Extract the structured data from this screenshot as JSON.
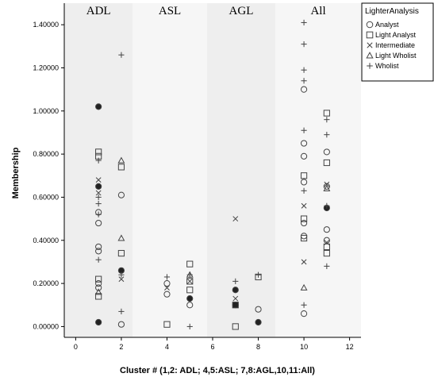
{
  "chart_data": {
    "type": "scatter",
    "title": "",
    "xlabel": "Cluster # (1,2: ADL; 4,5:ASL; 7,8:AGL,10,11:All)",
    "ylabel": "Membership",
    "xlim": [
      -0.5,
      12.5
    ],
    "ylim": [
      -0.05,
      1.5
    ],
    "x_ticks": [
      "0",
      "2",
      "4",
      "6",
      "8",
      "10",
      "12"
    ],
    "x_tick_values": [
      0,
      2,
      4,
      6,
      8,
      10,
      12
    ],
    "y_ticks": [
      "0.00000",
      "0.20000",
      "0.40000",
      "0.60000",
      "0.80000",
      "1.00000",
      "1.20000",
      "1.40000"
    ],
    "y_tick_values": [
      0,
      0.2,
      0.4,
      0.6,
      0.8,
      1.0,
      1.2,
      1.4
    ],
    "grid": false,
    "panels": [
      {
        "label": "ADL",
        "x_range": [
          -0.5,
          2.5
        ],
        "color": "#eeeeee"
      },
      {
        "label": "ASL",
        "x_range": [
          2.5,
          5.75
        ],
        "color": "#f6f6f6"
      },
      {
        "label": "AGL",
        "x_range": [
          5.75,
          8.75
        ],
        "color": "#eeeeee"
      },
      {
        "label": "All",
        "x_range": [
          8.75,
          12.5
        ],
        "color": "#f6f6f6"
      }
    ],
    "legend": {
      "title": "LighterAnalysis",
      "position": "top-right",
      "entries": [
        {
          "name": "Analyst",
          "marker": "circle"
        },
        {
          "name": "Light Analyst",
          "marker": "square"
        },
        {
          "name": "Intermediate",
          "marker": "x"
        },
        {
          "name": "Light Wholist",
          "marker": "triangle"
        },
        {
          "name": "Wholist",
          "marker": "plus"
        }
      ]
    },
    "series": [
      {
        "name": "Analyst",
        "marker": "circle",
        "points": [
          [
            1,
            1.02
          ],
          [
            1,
            0.65
          ],
          [
            1,
            0.53
          ],
          [
            1,
            0.48
          ],
          [
            1,
            0.37
          ],
          [
            1,
            0.35
          ],
          [
            1,
            0.2
          ],
          [
            1,
            0.18
          ],
          [
            1,
            0.02
          ],
          [
            2,
            0.61
          ],
          [
            2,
            0.26
          ],
          [
            2,
            0.01
          ],
          [
            4,
            0.2
          ],
          [
            4,
            0.15
          ],
          [
            5,
            0.13
          ],
          [
            5,
            0.1
          ],
          [
            7,
            0.17
          ],
          [
            7,
            0.1
          ],
          [
            8,
            0.08
          ],
          [
            8,
            0.02
          ],
          [
            10,
            1.1
          ],
          [
            10,
            0.85
          ],
          [
            10,
            0.79
          ],
          [
            10,
            0.67
          ],
          [
            10,
            0.48
          ],
          [
            10,
            0.42
          ],
          [
            10,
            0.06
          ],
          [
            11,
            0.81
          ],
          [
            11,
            0.65
          ],
          [
            11,
            0.55
          ],
          [
            11,
            0.45
          ],
          [
            11,
            0.4
          ]
        ]
      },
      {
        "name": "Light Analyst",
        "marker": "square",
        "points": [
          [
            1,
            0.81
          ],
          [
            1,
            0.79
          ],
          [
            1,
            0.22
          ],
          [
            1,
            0.14
          ],
          [
            2,
            0.74
          ],
          [
            2,
            0.34
          ],
          [
            4,
            0.01
          ],
          [
            5,
            0.29
          ],
          [
            5,
            0.21
          ],
          [
            5,
            0.17
          ],
          [
            7,
            0.0
          ],
          [
            7,
            0.1
          ],
          [
            8,
            0.23
          ],
          [
            10,
            0.7
          ],
          [
            10,
            0.5
          ],
          [
            10,
            0.41
          ],
          [
            11,
            0.99
          ],
          [
            11,
            0.76
          ],
          [
            11,
            0.37
          ],
          [
            11,
            0.34
          ]
        ]
      },
      {
        "name": "Intermediate",
        "marker": "x",
        "points": [
          [
            1,
            0.68
          ],
          [
            1,
            0.62
          ],
          [
            2,
            0.22
          ],
          [
            4,
            0.18
          ],
          [
            5,
            0.21
          ],
          [
            7,
            0.5
          ],
          [
            7,
            0.13
          ],
          [
            10,
            0.56
          ],
          [
            10,
            0.3
          ],
          [
            11,
            0.66
          ],
          [
            11,
            0.39
          ]
        ]
      },
      {
        "name": "Light Wholist",
        "marker": "triangle",
        "points": [
          [
            1,
            0.16
          ],
          [
            2,
            0.77
          ],
          [
            2,
            0.41
          ],
          [
            5,
            0.24
          ],
          [
            10,
            0.18
          ],
          [
            11,
            0.64
          ]
        ]
      },
      {
        "name": "Wholist",
        "marker": "plus",
        "points": [
          [
            1,
            0.77
          ],
          [
            1,
            0.6
          ],
          [
            1,
            0.57
          ],
          [
            1,
            0.52
          ],
          [
            1,
            0.31
          ],
          [
            2,
            1.26
          ],
          [
            2,
            0.24
          ],
          [
            2,
            0.07
          ],
          [
            4,
            0.23
          ],
          [
            5,
            0.24
          ],
          [
            5,
            0.0
          ],
          [
            7,
            0.21
          ],
          [
            8,
            0.24
          ],
          [
            10,
            1.41
          ],
          [
            10,
            1.31
          ],
          [
            10,
            1.19
          ],
          [
            10,
            1.14
          ],
          [
            10,
            0.91
          ],
          [
            10,
            0.63
          ],
          [
            10,
            0.1
          ],
          [
            11,
            0.96
          ],
          [
            11,
            0.89
          ],
          [
            11,
            0.56
          ],
          [
            11,
            0.28
          ]
        ]
      }
    ],
    "solid_points": [
      [
        1,
        1.02
      ],
      [
        1,
        0.65
      ],
      [
        1,
        0.02
      ],
      [
        2,
        0.26
      ],
      [
        5,
        0.13
      ],
      [
        7,
        0.17
      ],
      [
        7,
        0.1
      ],
      [
        8,
        0.02
      ],
      [
        11,
        0.55
      ]
    ]
  }
}
